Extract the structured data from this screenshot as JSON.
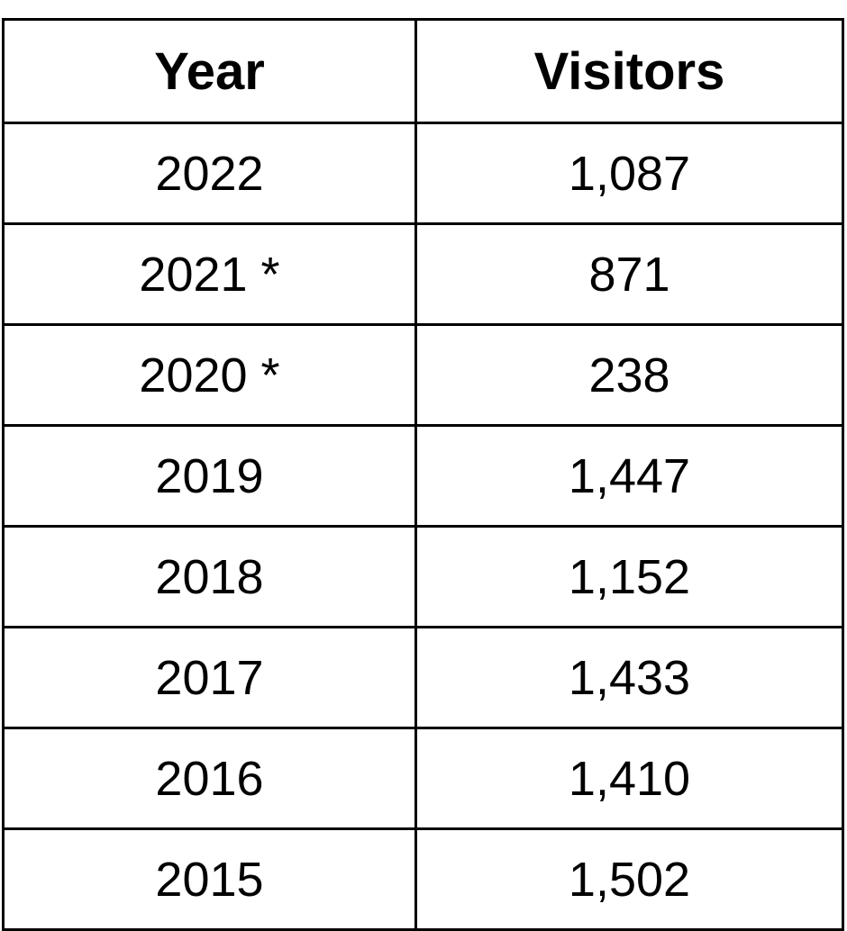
{
  "table": {
    "header": [
      "Year",
      "Visitors"
    ],
    "rows": [
      [
        "2022",
        "1,087"
      ],
      [
        "2021 *",
        "871"
      ],
      [
        "2020 *",
        "238"
      ],
      [
        "2019",
        "1,447"
      ],
      [
        "2018",
        "1,152"
      ],
      [
        "2017",
        "1,433"
      ],
      [
        "2016",
        "1,410"
      ],
      [
        "2015",
        "1,502"
      ]
    ]
  }
}
